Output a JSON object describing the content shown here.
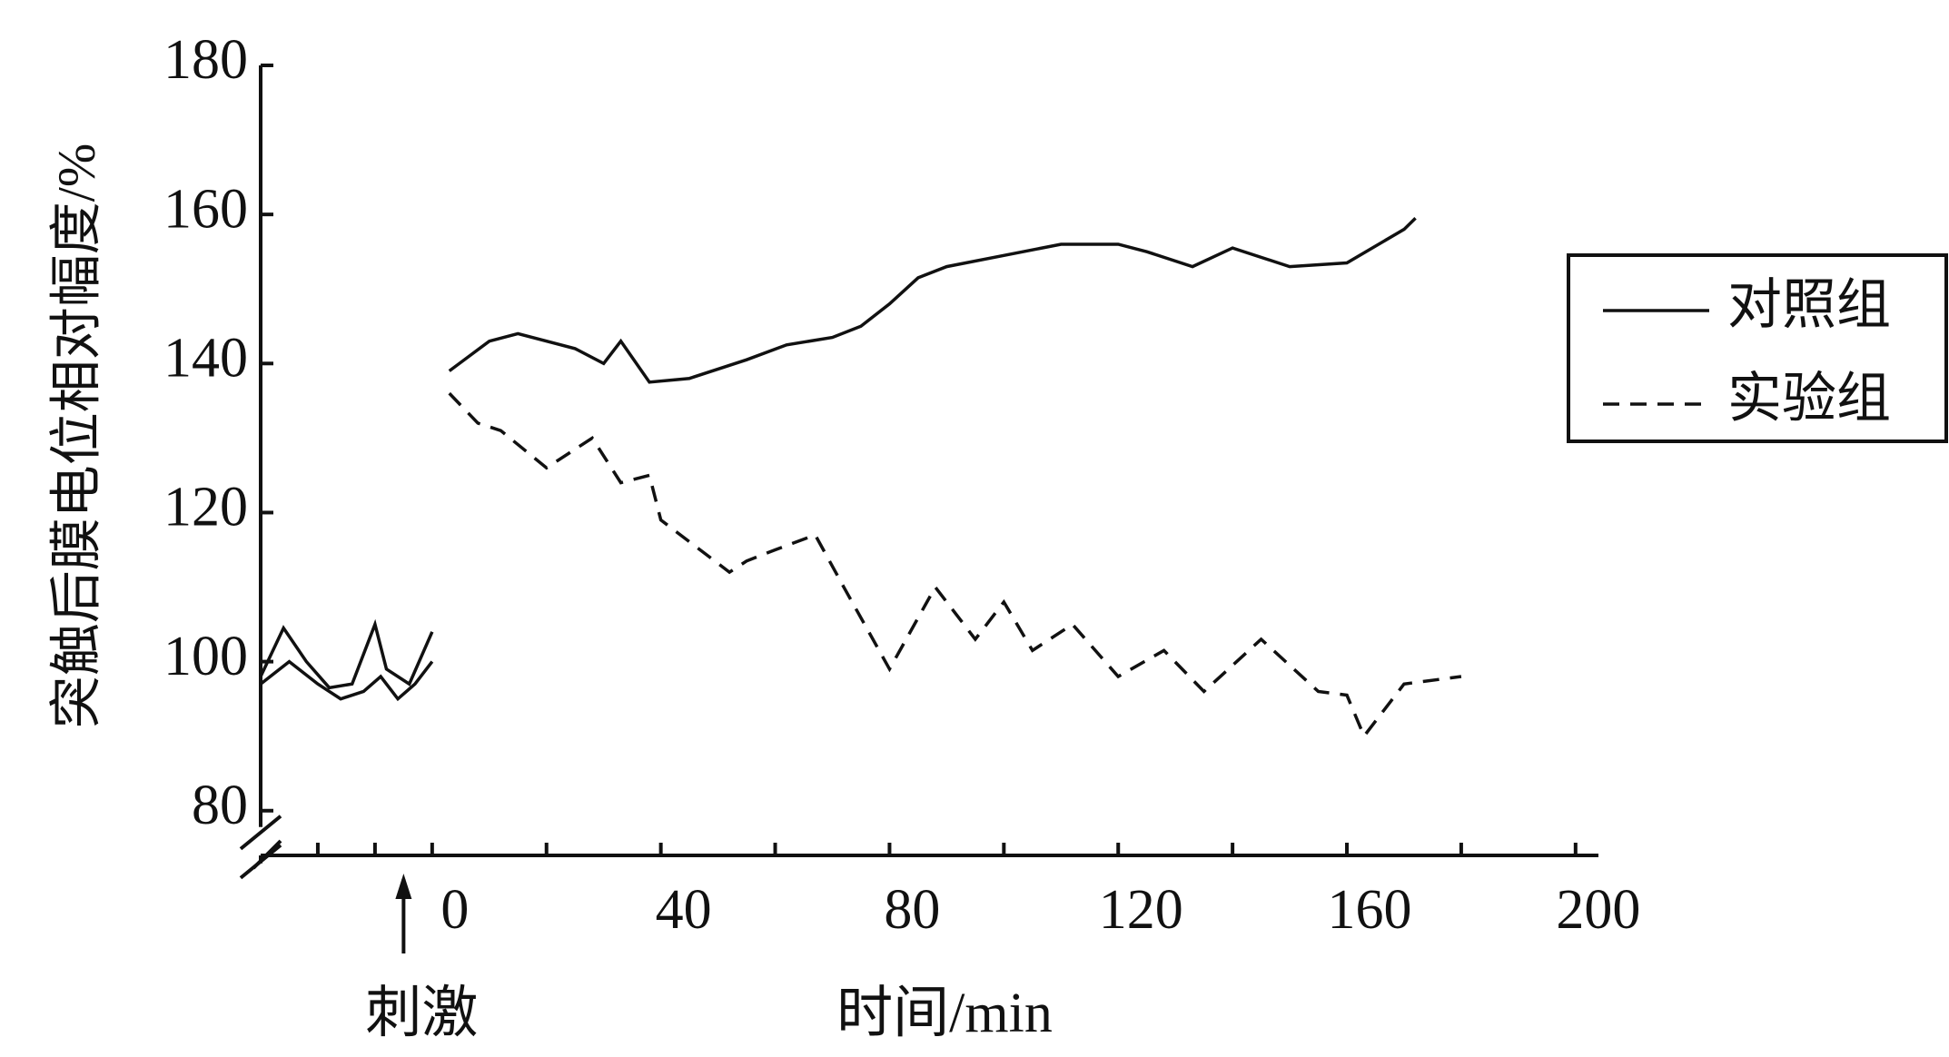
{
  "chart_data": {
    "type": "line",
    "y_label": "突触后膜电位相对幅度/%",
    "x_label": "时间/min",
    "annotation": "刺激",
    "annotation_x": -5,
    "xlim": [
      -30,
      204
    ],
    "ylim": [
      74,
      180
    ],
    "xticks": [
      0,
      40,
      80,
      120,
      160,
      200
    ],
    "xminorticks": [
      -20,
      -10,
      20,
      60,
      100,
      140,
      180
    ],
    "yticks": [
      80,
      100,
      120,
      140,
      160,
      180
    ],
    "axis_break": true,
    "legend": "upper right",
    "series": [
      {
        "name": "对照组",
        "color": "#111111",
        "dash": "solid",
        "x": [
          3,
          10,
          15,
          25,
          30,
          33,
          38,
          45,
          55,
          62,
          70,
          75,
          80,
          85,
          90,
          100,
          110,
          120,
          125,
          133,
          140,
          150,
          160,
          170,
          172
        ],
        "values": [
          139,
          143,
          144,
          142,
          140,
          143,
          137.5,
          138,
          140.5,
          142.5,
          143.5,
          145,
          148,
          151.5,
          153,
          154.5,
          156,
          156,
          155,
          153,
          155.5,
          153,
          153.5,
          158,
          159.5
        ]
      },
      {
        "name": "实验组",
        "color": "#111111",
        "dash": "dashed",
        "x": [
          3,
          8,
          12,
          20,
          28,
          33,
          38,
          40,
          52,
          55,
          60,
          67,
          72,
          80,
          88,
          95,
          100,
          105,
          112,
          120,
          128,
          135,
          145,
          155,
          160,
          163,
          170,
          180
        ],
        "values": [
          136,
          132,
          131,
          126,
          130,
          124,
          125,
          119,
          112,
          113.5,
          115,
          117,
          110,
          99,
          110,
          103,
          108,
          101.5,
          105,
          98,
          101.5,
          96,
          103,
          96,
          95.5,
          90,
          97,
          98
        ]
      },
      {
        "color": "#111111",
        "dash": "solid",
        "x": [
          -30,
          -26,
          -22,
          -18,
          -14,
          -10,
          -8,
          -4,
          0
        ],
        "values": [
          98,
          104.5,
          100,
          96.5,
          97,
          105,
          99,
          97,
          104
        ]
      },
      {
        "color": "#111111",
        "dash": "solid",
        "x": [
          -30,
          -25,
          -20,
          -16,
          -12,
          -9,
          -6,
          -3,
          0
        ],
        "values": [
          97,
          100,
          97,
          95,
          96,
          98,
          95,
          97,
          100
        ]
      }
    ]
  }
}
